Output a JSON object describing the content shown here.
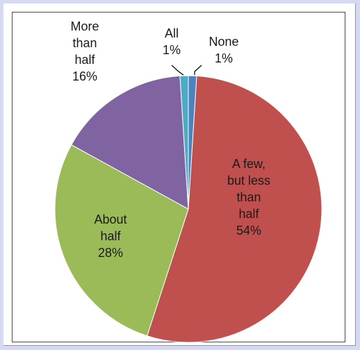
{
  "chart_data": {
    "type": "pie",
    "title": "",
    "legend": "none",
    "slices": [
      {
        "label": "None",
        "value": 1,
        "pct": "1%",
        "color": "#4f81bd"
      },
      {
        "label": "A few, but less than half",
        "label_lines": [
          "A few,",
          "but less",
          "than",
          "half"
        ],
        "value": 54,
        "pct": "54%",
        "color": "#c0504d"
      },
      {
        "label": "About half",
        "label_lines": [
          "About",
          "half"
        ],
        "value": 28,
        "pct": "28%",
        "color": "#9bbb59"
      },
      {
        "label": "More than half",
        "label_lines": [
          "More",
          "than",
          "half"
        ],
        "value": 16,
        "pct": "16%",
        "color": "#8064a2"
      },
      {
        "label": "All",
        "value": 1,
        "pct": "1%",
        "color": "#4bacc6"
      }
    ]
  },
  "colors": {
    "page_background": "#d6d9f3",
    "plot_border": "#4a4a4a",
    "slice_border": "#ffffff"
  }
}
